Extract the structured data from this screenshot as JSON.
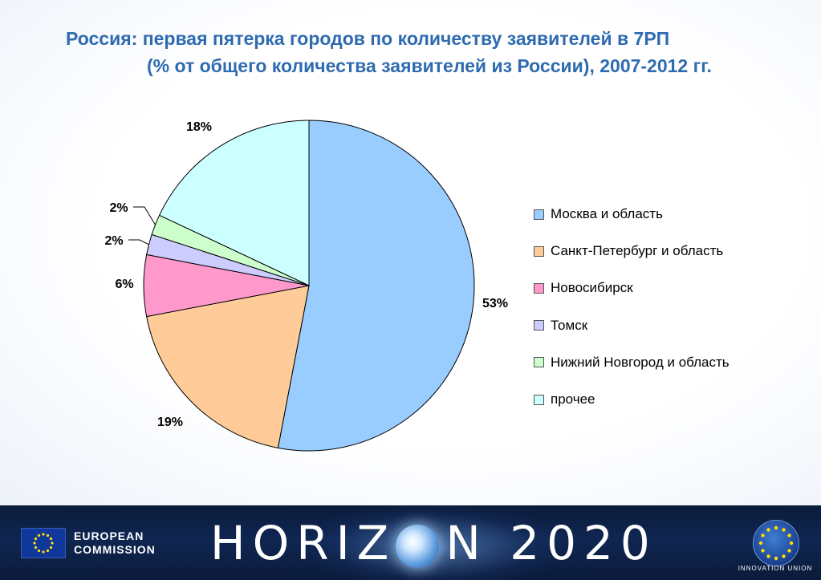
{
  "title": {
    "line1": "Россия: первая пятерка городов по количеству заявителей в 7РП",
    "line2": "(% от общего количества заявителей из России), 2007-2012 гг."
  },
  "chart_data": {
    "type": "pie",
    "title": "Россия: первая пятерка городов по количеству заявителей в 7РП (% от общего количества заявителей из России), 2007-2012 гг.",
    "start_angle": "12 o'clock",
    "direction": "clockwise",
    "legend_position": "right",
    "slices": [
      {
        "label": "Москва и область",
        "value": 53,
        "display": "53%",
        "color": "#99ccff"
      },
      {
        "label": "Санкт-Петербург и область",
        "value": 19,
        "display": "19%",
        "color": "#ffcc99"
      },
      {
        "label": "Новосибирск",
        "value": 6,
        "display": "6%",
        "color": "#ff99cc"
      },
      {
        "label": "Томск",
        "value": 2,
        "display": "2%",
        "color": "#ccccff"
      },
      {
        "label": "Нижний Новгород и область",
        "value": 2,
        "display": "2%",
        "color": "#ccffcc"
      },
      {
        "label": "прочее",
        "value": 18,
        "display": "18%",
        "color": "#ccffff"
      }
    ]
  },
  "footer": {
    "ec_line1": "EUROPEAN",
    "ec_line2": "COMMISSION",
    "horizon_left": "HORIZ",
    "horizon_right": "N 2020",
    "badge_text": "INNOVATION UNION",
    "background_color": "#0f2652"
  }
}
